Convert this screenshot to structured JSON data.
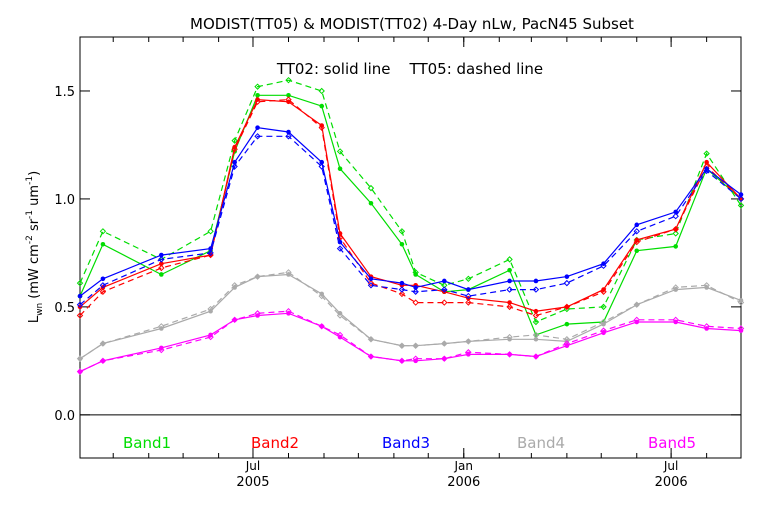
{
  "chart_data": {
    "type": "line",
    "title": "MODIST(TT05) & MODIST(TT02) 4-Day nLw, PacN45 Subset",
    "annotation": "TT02: solid line    TT05: dashed line",
    "ylabel": "Lwn (mW cm-2 sr-1 um-1)",
    "ylabel_parts": {
      "main": "L",
      "sub": "wn",
      "open": " (mW cm",
      "e1": "-2",
      "mid1": " sr",
      "e2": "-1",
      "mid2": " um",
      "e3": "-1",
      "close": ")"
    },
    "ylim": [
      -0.2,
      1.75
    ],
    "yticks": [
      0.0,
      0.5,
      1.0,
      1.5
    ],
    "ytick_labels": [
      "0.0",
      "0.5",
      "1.0",
      "1.5"
    ],
    "xlim": [
      "2005-01-31",
      "2006-08-31"
    ],
    "xminor_ticks": [
      "2005-03-01",
      "2005-04-01",
      "2005-05-01",
      "2005-06-01",
      "2005-07-01",
      "2005-08-01",
      "2005-09-01",
      "2005-10-01",
      "2005-11-01",
      "2005-12-01",
      "2006-01-01",
      "2006-02-01",
      "2006-03-01",
      "2006-04-01",
      "2006-05-01",
      "2006-06-01",
      "2006-07-01",
      "2006-08-01"
    ],
    "xmajor_ticks": [
      {
        "date": "2005-07-01",
        "line1": "Jul",
        "line2": "2005"
      },
      {
        "date": "2006-01-01",
        "line1": "Jan",
        "line2": "2006"
      },
      {
        "date": "2006-07-01",
        "line1": "Jul",
        "line2": "2006"
      }
    ],
    "legend": [
      {
        "label": "Band1",
        "color": "#00dd00"
      },
      {
        "label": "Band2",
        "color": "#ff0000"
      },
      {
        "label": "Band3",
        "color": "#0000ff"
      },
      {
        "label": "Band4",
        "color": "#aaaaaa"
      },
      {
        "label": "Band5",
        "color": "#ff00ff"
      }
    ],
    "x": [
      "2005-01-31",
      "2005-02-20",
      "2005-04-12",
      "2005-05-25",
      "2005-06-15",
      "2005-07-05",
      "2005-08-01",
      "2005-08-30",
      "2005-09-15",
      "2005-10-12",
      "2005-11-08",
      "2005-11-20",
      "2005-12-15",
      "2006-01-05",
      "2006-02-10",
      "2006-03-05",
      "2006-04-01",
      "2006-05-03",
      "2006-06-01",
      "2006-07-05",
      "2006-08-01",
      "2006-08-31"
    ],
    "series": [
      {
        "name": "Band1",
        "style": "solid",
        "color": "#00dd00",
        "values": [
          0.55,
          0.79,
          0.65,
          0.76,
          1.22,
          1.48,
          1.48,
          1.43,
          1.14,
          0.98,
          0.79,
          0.65,
          0.57,
          0.58,
          0.67,
          0.37,
          0.42,
          0.43,
          0.76,
          0.78,
          1.14,
          1.0
        ]
      },
      {
        "name": "Band1",
        "style": "dashed",
        "color": "#00dd00",
        "values": [
          0.61,
          0.85,
          0.72,
          0.85,
          1.27,
          1.52,
          1.55,
          1.5,
          1.22,
          1.05,
          0.85,
          0.66,
          0.6,
          0.63,
          0.72,
          0.43,
          0.49,
          0.5,
          0.81,
          0.84,
          1.21,
          0.97
        ]
      },
      {
        "name": "Band2",
        "style": "solid",
        "color": "#ff0000",
        "values": [
          0.5,
          0.59,
          0.7,
          0.74,
          1.24,
          1.46,
          1.45,
          1.34,
          0.84,
          0.64,
          0.6,
          0.6,
          0.57,
          0.54,
          0.52,
          0.48,
          0.5,
          0.58,
          0.81,
          0.86,
          1.17,
          1.0
        ]
      },
      {
        "name": "Band2",
        "style": "dashed",
        "color": "#ff0000",
        "values": [
          0.46,
          0.57,
          0.68,
          0.74,
          1.23,
          1.45,
          1.46,
          1.33,
          0.82,
          0.61,
          0.56,
          0.52,
          0.52,
          0.52,
          0.5,
          0.46,
          0.5,
          0.57,
          0.8,
          0.86,
          1.15,
          1.0
        ]
      },
      {
        "name": "Band3",
        "style": "solid",
        "color": "#0000ff",
        "values": [
          0.55,
          0.63,
          0.74,
          0.77,
          1.17,
          1.33,
          1.31,
          1.17,
          0.8,
          0.63,
          0.61,
          0.59,
          0.62,
          0.58,
          0.62,
          0.62,
          0.64,
          0.7,
          0.88,
          0.94,
          1.14,
          1.02
        ]
      },
      {
        "name": "Band3",
        "style": "dashed",
        "color": "#0000ff",
        "values": [
          0.51,
          0.6,
          0.72,
          0.75,
          1.15,
          1.29,
          1.29,
          1.15,
          0.77,
          0.6,
          0.58,
          0.57,
          0.58,
          0.55,
          0.58,
          0.58,
          0.61,
          0.69,
          0.85,
          0.92,
          1.13,
          1.0
        ]
      },
      {
        "name": "Band4",
        "style": "solid",
        "color": "#aaaaaa",
        "values": [
          0.26,
          0.33,
          0.4,
          0.48,
          0.59,
          0.64,
          0.65,
          0.56,
          0.47,
          0.35,
          0.32,
          0.32,
          0.33,
          0.34,
          0.35,
          0.35,
          0.34,
          0.42,
          0.51,
          0.58,
          0.59,
          0.53
        ]
      },
      {
        "name": "Band4",
        "style": "dashed",
        "color": "#aaaaaa",
        "values": [
          0.26,
          0.33,
          0.41,
          0.49,
          0.6,
          0.64,
          0.66,
          0.55,
          0.46,
          0.35,
          0.32,
          0.32,
          0.33,
          0.34,
          0.36,
          0.37,
          0.35,
          0.43,
          0.51,
          0.59,
          0.6,
          0.52
        ]
      },
      {
        "name": "Band5",
        "style": "solid",
        "color": "#ff00ff",
        "values": [
          0.2,
          0.25,
          0.31,
          0.37,
          0.44,
          0.46,
          0.47,
          0.41,
          0.36,
          0.27,
          0.25,
          0.25,
          0.26,
          0.28,
          0.28,
          0.27,
          0.32,
          0.38,
          0.43,
          0.43,
          0.4,
          0.39
        ]
      },
      {
        "name": "Band5",
        "style": "dashed",
        "color": "#ff00ff",
        "values": [
          0.2,
          0.25,
          0.3,
          0.36,
          0.44,
          0.47,
          0.48,
          0.41,
          0.37,
          0.27,
          0.25,
          0.26,
          0.26,
          0.29,
          0.28,
          0.27,
          0.33,
          0.39,
          0.44,
          0.44,
          0.41,
          0.4
        ]
      }
    ],
    "grid": false,
    "zero_line": true,
    "legend_placement": "bottom, inside plot"
  }
}
